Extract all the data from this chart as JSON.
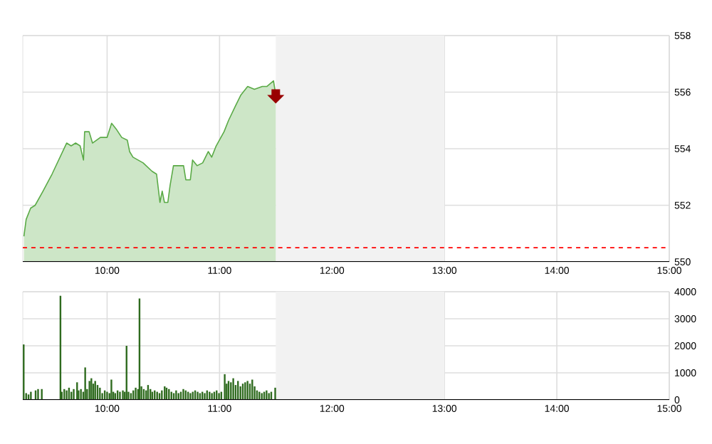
{
  "chart_data": [
    {
      "type": "area",
      "color": "#5aaa46",
      "xlim": [
        9.25,
        15
      ],
      "ylim": [
        550,
        558
      ],
      "yticks": [
        550,
        552,
        554,
        556,
        558
      ],
      "grid": true,
      "xticks": [
        {
          "value": 10,
          "label": "10:00"
        },
        {
          "value": 11,
          "label": "11:00"
        },
        {
          "value": 12,
          "label": "12:00"
        },
        {
          "value": 13,
          "label": "13:00"
        },
        {
          "value": 14,
          "label": "14:00"
        },
        {
          "value": 15,
          "label": "15:00"
        }
      ],
      "ref_lines": [
        {
          "axis": "y",
          "value": 550.5,
          "color": "#ff0000",
          "line_style": "dashed"
        }
      ],
      "bands": [
        {
          "axis": "x",
          "from": 11.5,
          "to": 13,
          "color": "#f2f2f2"
        }
      ],
      "x": [
        9.26,
        9.28,
        9.32,
        9.36,
        9.43,
        9.51,
        9.64,
        9.68,
        9.72,
        9.76,
        9.79,
        9.8,
        9.84,
        9.87,
        9.94,
        10.0,
        10.04,
        10.08,
        10.13,
        10.18,
        10.2,
        10.23,
        10.32,
        10.4,
        10.44,
        10.47,
        10.49,
        10.51,
        10.54,
        10.56,
        10.59,
        10.68,
        10.7,
        10.74,
        10.76,
        10.8,
        10.85,
        10.9,
        10.93,
        10.97,
        11.04,
        11.08,
        11.14,
        11.19,
        11.25,
        11.31,
        11.38,
        11.42,
        11.48,
        11.5
      ],
      "values": [
        550.9,
        551.5,
        551.9,
        552.0,
        552.5,
        553.1,
        554.2,
        554.1,
        554.2,
        554.1,
        553.6,
        554.6,
        554.6,
        554.2,
        554.4,
        554.4,
        554.9,
        554.7,
        554.4,
        554.3,
        553.9,
        553.7,
        553.5,
        553.2,
        553.1,
        552.1,
        552.5,
        552.1,
        552.1,
        552.7,
        553.4,
        553.4,
        552.9,
        552.9,
        553.6,
        553.4,
        553.5,
        553.9,
        553.7,
        554.1,
        554.6,
        555.0,
        555.5,
        555.9,
        556.2,
        556.1,
        556.2,
        556.2,
        556.4,
        555.9
      ]
    },
    {
      "type": "bar",
      "color": "#2f6b1f",
      "xlim": [
        9.25,
        15
      ],
      "ylim": [
        0,
        4000
      ],
      "yticks": [
        0,
        1000,
        2000,
        3000,
        4000
      ],
      "grid": true,
      "xticks": [
        {
          "value": 10,
          "label": "10:00"
        },
        {
          "value": 11,
          "label": "11:00"
        },
        {
          "value": 12,
          "label": "12:00"
        },
        {
          "value": 13,
          "label": "13:00"
        },
        {
          "value": 14,
          "label": "14:00"
        },
        {
          "value": 15,
          "label": "15:00"
        }
      ],
      "bands": [
        {
          "axis": "x",
          "from": 11.5,
          "to": 13,
          "color": "#f2f2f2"
        }
      ],
      "x": [
        9.258,
        9.28,
        9.301,
        9.322,
        9.364,
        9.386,
        9.419,
        9.585,
        9.597,
        9.619,
        9.64,
        9.661,
        9.682,
        9.703,
        9.733,
        9.746,
        9.767,
        9.788,
        9.805,
        9.822,
        9.843,
        9.86,
        9.877,
        9.894,
        9.915,
        9.936,
        9.957,
        9.979,
        10.0,
        10.021,
        10.038,
        10.055,
        10.072,
        10.093,
        10.114,
        10.14,
        10.157,
        10.173,
        10.19,
        10.212,
        10.233,
        10.254,
        10.275,
        10.288,
        10.305,
        10.326,
        10.347,
        10.364,
        10.385,
        10.402,
        10.423,
        10.445,
        10.466,
        10.487,
        10.512,
        10.529,
        10.55,
        10.572,
        10.593,
        10.614,
        10.635,
        10.656,
        10.678,
        10.699,
        10.72,
        10.741,
        10.762,
        10.783,
        10.805,
        10.826,
        10.847,
        10.868,
        10.889,
        10.911,
        10.932,
        10.953,
        10.974,
        10.995,
        11.016,
        11.046,
        11.063,
        11.08,
        11.101,
        11.122,
        11.143,
        11.164,
        11.186,
        11.207,
        11.228,
        11.249,
        11.27,
        11.291,
        11.312,
        11.333,
        11.354,
        11.376,
        11.397,
        11.418,
        11.439,
        11.46,
        11.495
      ],
      "values": [
        2050,
        250,
        200,
        300,
        350,
        400,
        400,
        3850,
        300,
        400,
        350,
        450,
        300,
        400,
        650,
        350,
        400,
        300,
        1200,
        400,
        700,
        800,
        600,
        700,
        550,
        450,
        250,
        350,
        300,
        250,
        750,
        300,
        250,
        350,
        300,
        350,
        300,
        2000,
        300,
        250,
        350,
        450,
        400,
        3750,
        500,
        400,
        350,
        550,
        400,
        300,
        350,
        300,
        250,
        350,
        500,
        450,
        400,
        300,
        250,
        350,
        250,
        300,
        400,
        350,
        300,
        250,
        300,
        350,
        300,
        250,
        300,
        250,
        350,
        300,
        250,
        300,
        350,
        250,
        300,
        950,
        600,
        700,
        650,
        800,
        550,
        700,
        500,
        600,
        650,
        700,
        600,
        750,
        500,
        350,
        300,
        250,
        300,
        350,
        250,
        300,
        450
      ]
    }
  ]
}
